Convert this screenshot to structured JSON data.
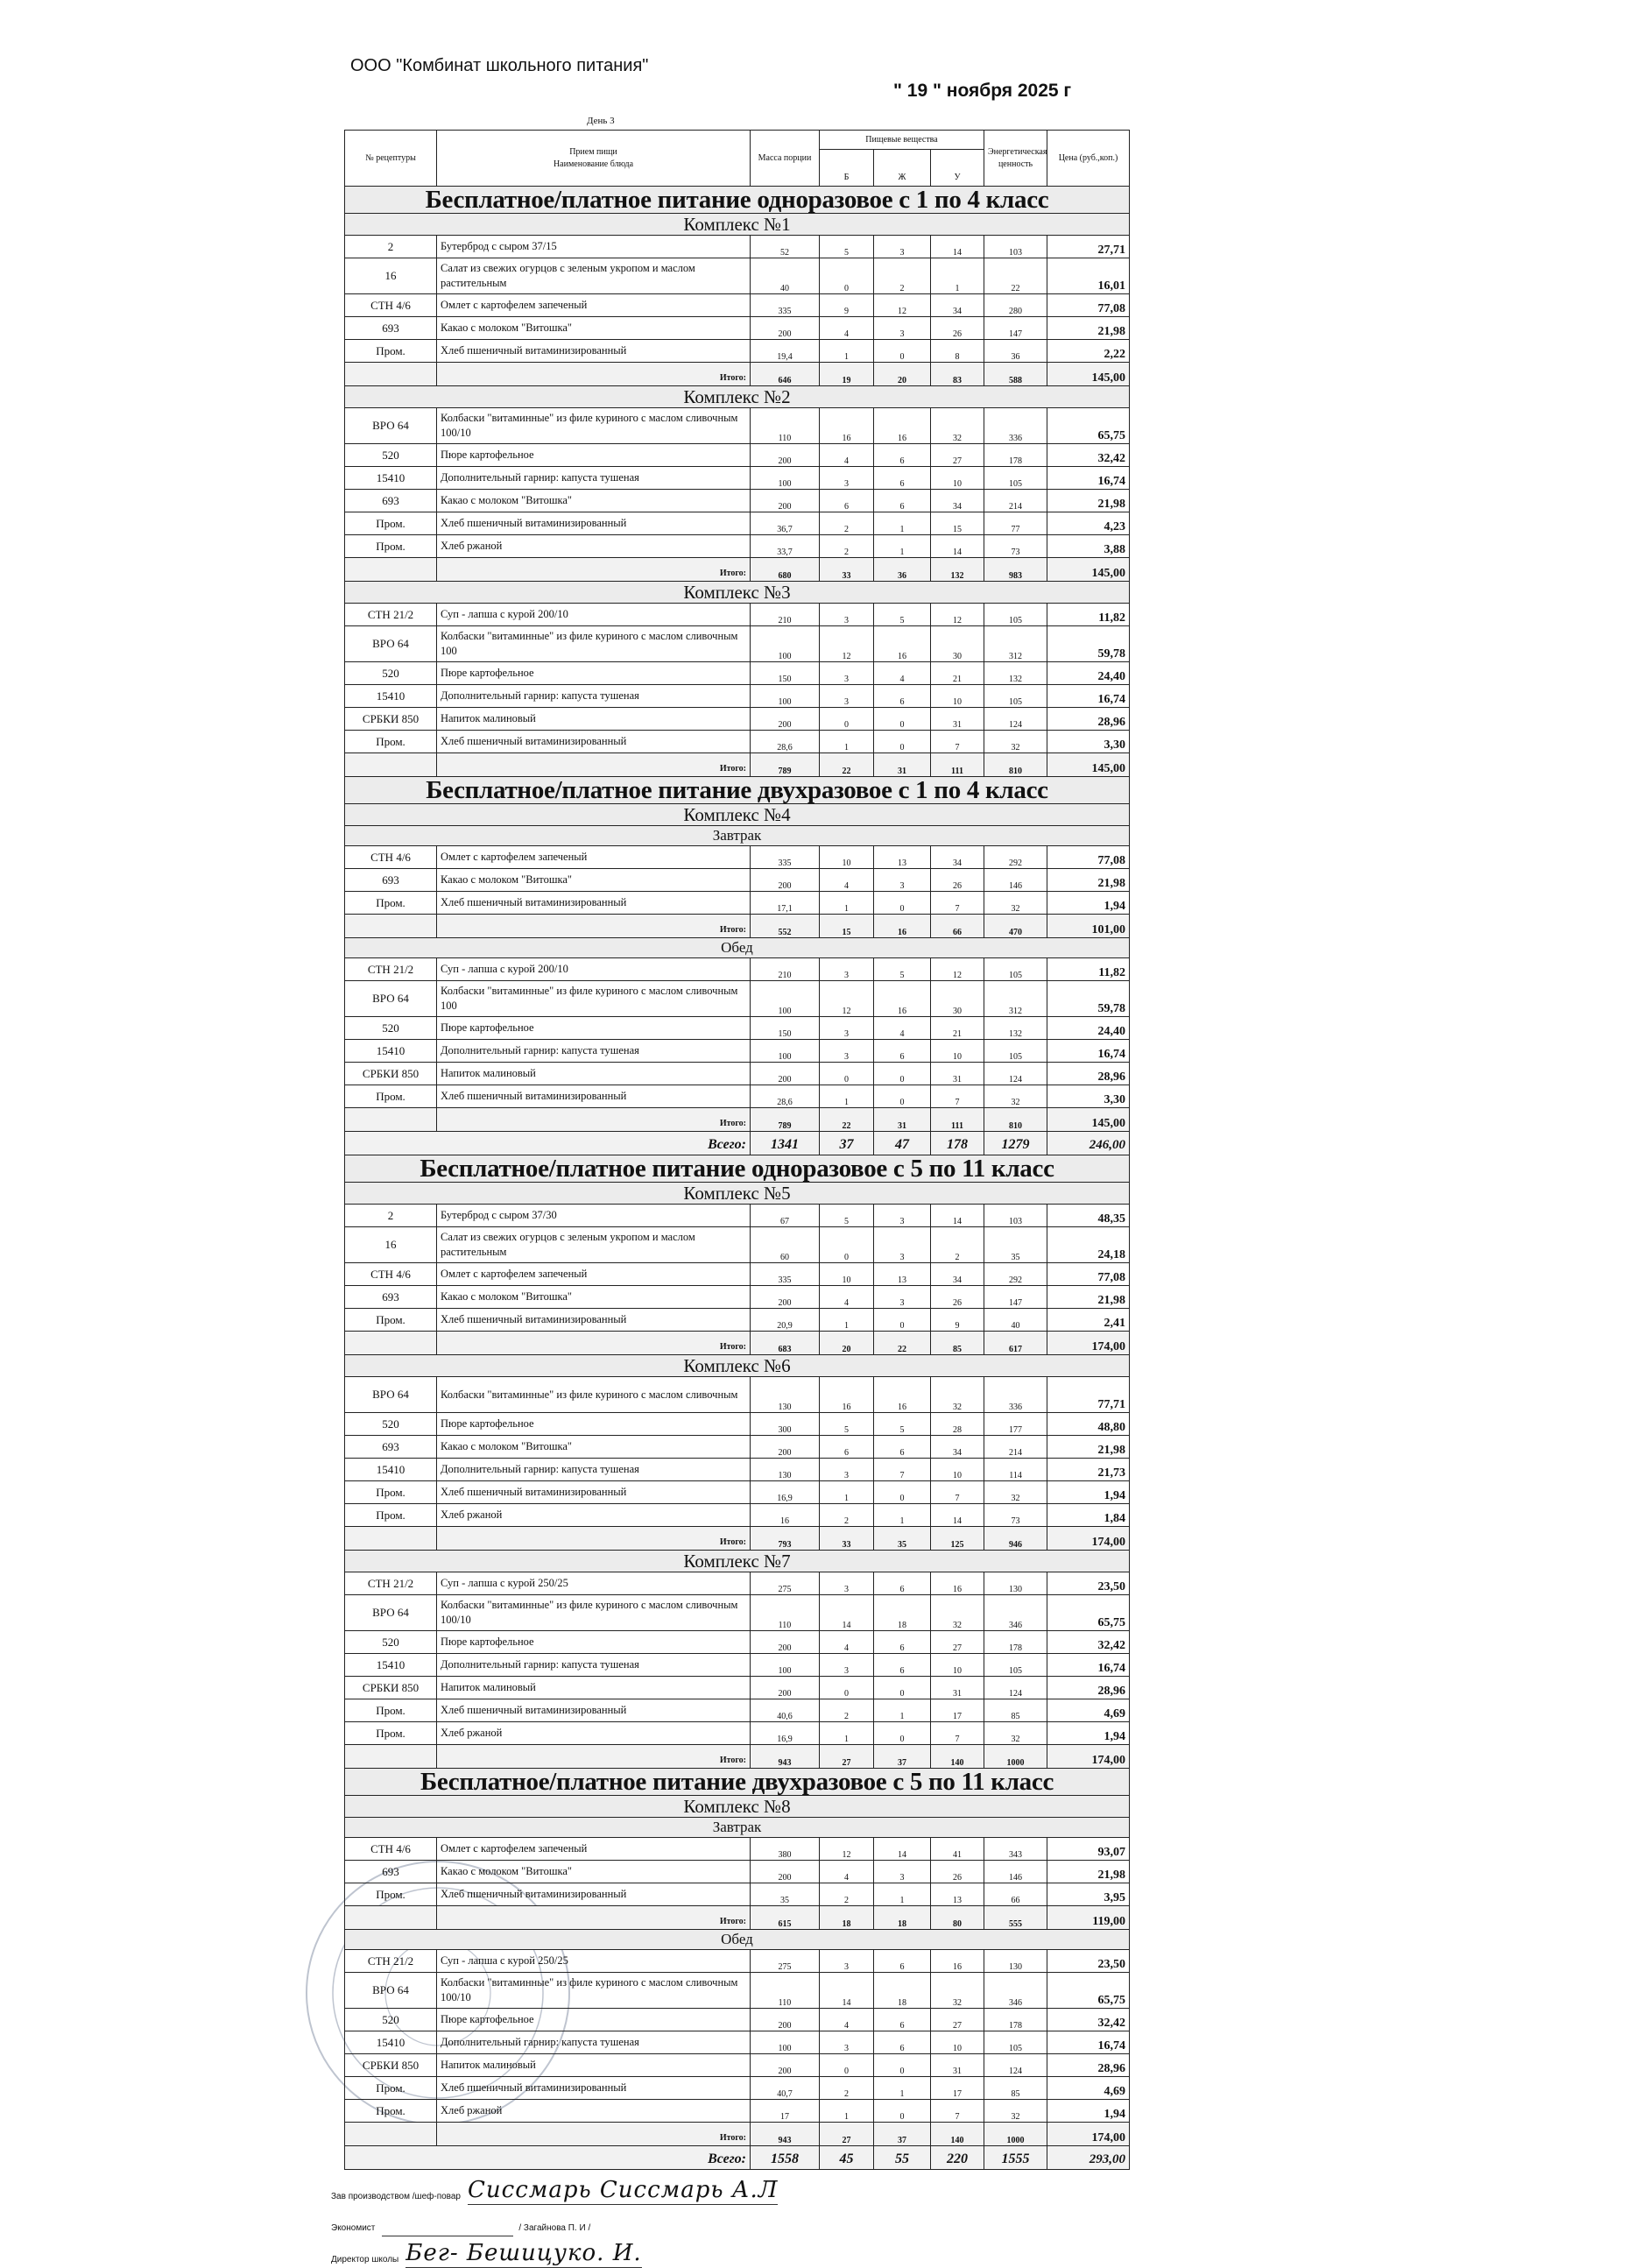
{
  "header": {
    "company": "ООО \"Комбинат школьного питания\"",
    "date": "\" 19 \" ноября  2025 г",
    "day": "День 3"
  },
  "columns": {
    "recipe": "№ рецептуры",
    "meal": "Прием пищи",
    "dish": "Наименование блюда",
    "mass": "Масса порции",
    "nutrients": "Пищевые вещества",
    "b": "Б",
    "zh": "Ж",
    "u": "У",
    "energy": "Энергетическая ценность",
    "price": "Цена (руб.,коп.)"
  },
  "labels": {
    "total": "Итого:",
    "grand_total": "Всего:"
  },
  "sections": [
    {
      "title": "Бесплатное/платное питание одноразовое  с 1 по 4 класс",
      "complexes": [
        {
          "name": "Комплекс №1",
          "groups": [
            {
              "rows": [
                [
                  "2",
                  "Бутерброд с сыром 37/15",
                  "52",
                  "5",
                  "3",
                  "14",
                  "103",
                  "27,71"
                ],
                [
                  "16",
                  "Салат из свежих огурцов с зеленым укропом и маслом растительным",
                  "40",
                  "0",
                  "2",
                  "1",
                  "22",
                  "16,01"
                ],
                [
                  "СТН 4/6",
                  "Омлет с картофелем запеченый",
                  "335",
                  "9",
                  "12",
                  "34",
                  "280",
                  "77,08"
                ],
                [
                  "693",
                  "Какао с молоком \"Витошка\"",
                  "200",
                  "4",
                  "3",
                  "26",
                  "147",
                  "21,98"
                ],
                [
                  "Пром.",
                  "Хлеб пшеничный витаминизированный",
                  "19,4",
                  "1",
                  "0",
                  "8",
                  "36",
                  "2,22"
                ]
              ],
              "total": [
                "646",
                "19",
                "20",
                "83",
                "588",
                "145,00"
              ]
            }
          ]
        },
        {
          "name": "Комплекс №2",
          "groups": [
            {
              "rows": [
                [
                  "ВРО 64",
                  "Колбаски \"витаминные\" из филе куриного с маслом сливочным 100/10",
                  "110",
                  "16",
                  "16",
                  "32",
                  "336",
                  "65,75"
                ],
                [
                  "520",
                  "Пюре картофельное",
                  "200",
                  "4",
                  "6",
                  "27",
                  "178",
                  "32,42"
                ],
                [
                  "15410",
                  "Дополнительный гарнир: капуста тушеная",
                  "100",
                  "3",
                  "6",
                  "10",
                  "105",
                  "16,74"
                ],
                [
                  "693",
                  "Какао с молоком \"Витошка\"",
                  "200",
                  "6",
                  "6",
                  "34",
                  "214",
                  "21,98"
                ],
                [
                  "Пром.",
                  "Хлеб пшеничный витаминизированный",
                  "36,7",
                  "2",
                  "1",
                  "15",
                  "77",
                  "4,23"
                ],
                [
                  "Пром.",
                  "Хлеб ржаной",
                  "33,7",
                  "2",
                  "1",
                  "14",
                  "73",
                  "3,88"
                ]
              ],
              "total": [
                "680",
                "33",
                "36",
                "132",
                "983",
                "145,00"
              ]
            }
          ]
        },
        {
          "name": "Комплекс №3",
          "groups": [
            {
              "rows": [
                [
                  "СТН 21/2",
                  "Суп - лапша с курой 200/10",
                  "210",
                  "3",
                  "5",
                  "12",
                  "105",
                  "11,82"
                ],
                [
                  "ВРО 64",
                  "Колбаски \"витаминные\" из филе куриного с маслом сливочным 100",
                  "100",
                  "12",
                  "16",
                  "30",
                  "312",
                  "59,78"
                ],
                [
                  "520",
                  "Пюре картофельное",
                  "150",
                  "3",
                  "4",
                  "21",
                  "132",
                  "24,40"
                ],
                [
                  "15410",
                  "Дополнительный гарнир: капуста тушеная",
                  "100",
                  "3",
                  "6",
                  "10",
                  "105",
                  "16,74"
                ],
                [
                  "СРБКИ 850",
                  "Напиток малиновый",
                  "200",
                  "0",
                  "0",
                  "31",
                  "124",
                  "28,96"
                ],
                [
                  "Пром.",
                  "Хлеб пшеничный витаминизированный",
                  "28,6",
                  "1",
                  "0",
                  "7",
                  "32",
                  "3,30"
                ]
              ],
              "total": [
                "789",
                "22",
                "31",
                "111",
                "810",
                "145,00"
              ]
            }
          ]
        }
      ]
    },
    {
      "title": "Бесплатное/платное питание двухразовое с 1 по 4 класс",
      "complexes": [
        {
          "name": "Комплекс №4",
          "groups": [
            {
              "label": "Завтрак",
              "rows": [
                [
                  "СТН 4/6",
                  "Омлет с картофелем запеченый",
                  "335",
                  "10",
                  "13",
                  "34",
                  "292",
                  "77,08"
                ],
                [
                  "693",
                  "Какао с молоком \"Витошка\"",
                  "200",
                  "4",
                  "3",
                  "26",
                  "146",
                  "21,98"
                ],
                [
                  "Пром.",
                  "Хлеб пшеничный витаминизированный",
                  "17,1",
                  "1",
                  "0",
                  "7",
                  "32",
                  "1,94"
                ]
              ],
              "total": [
                "552",
                "15",
                "16",
                "66",
                "470",
                "101,00"
              ]
            },
            {
              "label": "Обед",
              "rows": [
                [
                  "СТН 21/2",
                  "Суп - лапша с курой 200/10",
                  "210",
                  "3",
                  "5",
                  "12",
                  "105",
                  "11,82"
                ],
                [
                  "ВРО 64",
                  "Колбаски \"витаминные\" из филе куриного с маслом сливочным 100",
                  "100",
                  "12",
                  "16",
                  "30",
                  "312",
                  "59,78"
                ],
                [
                  "520",
                  "Пюре картофельное",
                  "150",
                  "3",
                  "4",
                  "21",
                  "132",
                  "24,40"
                ],
                [
                  "15410",
                  "Дополнительный гарнир: капуста тушеная",
                  "100",
                  "3",
                  "6",
                  "10",
                  "105",
                  "16,74"
                ],
                [
                  "СРБКИ 850",
                  "Напиток малиновый",
                  "200",
                  "0",
                  "0",
                  "31",
                  "124",
                  "28,96"
                ],
                [
                  "Пром.",
                  "Хлеб пшеничный витаминизированный",
                  "28,6",
                  "1",
                  "0",
                  "7",
                  "32",
                  "3,30"
                ]
              ],
              "total": [
                "789",
                "22",
                "31",
                "111",
                "810",
                "145,00"
              ]
            }
          ],
          "grand_total": [
            "1341",
            "37",
            "47",
            "178",
            "1279",
            "246,00"
          ]
        }
      ]
    },
    {
      "title": "Бесплатное/платное питание одноразовое  с 5 по 11 класс",
      "complexes": [
        {
          "name": "Комплекс №5",
          "groups": [
            {
              "rows": [
                [
                  "2",
                  "Бутерброд с сыром 37/30",
                  "67",
                  "5",
                  "3",
                  "14",
                  "103",
                  "48,35"
                ],
                [
                  "16",
                  "Салат из свежих огурцов с зеленым укропом и маслом растительным",
                  "60",
                  "0",
                  "3",
                  "2",
                  "35",
                  "24,18"
                ],
                [
                  "СТН 4/6",
                  "Омлет с картофелем запеченый",
                  "335",
                  "10",
                  "13",
                  "34",
                  "292",
                  "77,08"
                ],
                [
                  "693",
                  "Какао с молоком \"Витошка\"",
                  "200",
                  "4",
                  "3",
                  "26",
                  "147",
                  "21,98"
                ],
                [
                  "Пром.",
                  "Хлеб пшеничный витаминизированный",
                  "20,9",
                  "1",
                  "0",
                  "9",
                  "40",
                  "2,41"
                ]
              ],
              "total": [
                "683",
                "20",
                "22",
                "85",
                "617",
                "174,00"
              ]
            }
          ]
        },
        {
          "name": "Комплекс №6",
          "groups": [
            {
              "rows": [
                [
                  "ВРО 64",
                  "Колбаски \"витаминные\" из филе куриного с маслом сливочным",
                  "130",
                  "16",
                  "16",
                  "32",
                  "336",
                  "77,71"
                ],
                [
                  "520",
                  "Пюре картофельное",
                  "300",
                  "5",
                  "5",
                  "28",
                  "177",
                  "48,80"
                ],
                [
                  "693",
                  "Какао с молоком \"Витошка\"",
                  "200",
                  "6",
                  "6",
                  "34",
                  "214",
                  "21,98"
                ],
                [
                  "15410",
                  "Дополнительный гарнир: капуста тушеная",
                  "130",
                  "3",
                  "7",
                  "10",
                  "114",
                  "21,73"
                ],
                [
                  "Пром.",
                  "Хлеб пшеничный витаминизированный",
                  "16,9",
                  "1",
                  "0",
                  "7",
                  "32",
                  "1,94"
                ],
                [
                  "Пром.",
                  "Хлеб ржаной",
                  "16",
                  "2",
                  "1",
                  "14",
                  "73",
                  "1,84"
                ]
              ],
              "total": [
                "793",
                "33",
                "35",
                "125",
                "946",
                "174,00"
              ]
            }
          ]
        },
        {
          "name": "Комплекс №7",
          "groups": [
            {
              "rows": [
                [
                  "СТН 21/2",
                  "Суп - лапша с курой 250/25",
                  "275",
                  "3",
                  "6",
                  "16",
                  "130",
                  "23,50"
                ],
                [
                  "ВРО 64",
                  "Колбаски \"витаминные\" из филе куриного с маслом сливочным 100/10",
                  "110",
                  "14",
                  "18",
                  "32",
                  "346",
                  "65,75"
                ],
                [
                  "520",
                  "Пюре картофельное",
                  "200",
                  "4",
                  "6",
                  "27",
                  "178",
                  "32,42"
                ],
                [
                  "15410",
                  "Дополнительный гарнир: капуста тушеная",
                  "100",
                  "3",
                  "6",
                  "10",
                  "105",
                  "16,74"
                ],
                [
                  "СРБКИ 850",
                  "Напиток малиновый",
                  "200",
                  "0",
                  "0",
                  "31",
                  "124",
                  "28,96"
                ],
                [
                  "Пром.",
                  "Хлеб пшеничный витаминизированный",
                  "40,6",
                  "2",
                  "1",
                  "17",
                  "85",
                  "4,69"
                ],
                [
                  "Пром.",
                  "Хлеб ржаной",
                  "16,9",
                  "1",
                  "0",
                  "7",
                  "32",
                  "1,94"
                ]
              ],
              "total": [
                "943",
                "27",
                "37",
                "140",
                "1000",
                "174,00"
              ]
            }
          ]
        }
      ]
    },
    {
      "title": "Бесплатное/платное питание двухразовое с 5 по 11 класс",
      "complexes": [
        {
          "name": "Комплекс №8",
          "groups": [
            {
              "label": "Завтрак",
              "rows": [
                [
                  "СТН 4/6",
                  "Омлет с картофелем запеченый",
                  "380",
                  "12",
                  "14",
                  "41",
                  "343",
                  "93,07"
                ],
                [
                  "693",
                  "Какао с молоком \"Витошка\"",
                  "200",
                  "4",
                  "3",
                  "26",
                  "146",
                  "21,98"
                ],
                [
                  "Пром.",
                  "Хлеб пшеничный витаминизированный",
                  "35",
                  "2",
                  "1",
                  "13",
                  "66",
                  "3,95"
                ]
              ],
              "total": [
                "615",
                "18",
                "18",
                "80",
                "555",
                "119,00"
              ]
            },
            {
              "label": "Обед",
              "rows": [
                [
                  "СТН 21/2",
                  "Суп - лапша с курой 250/25",
                  "275",
                  "3",
                  "6",
                  "16",
                  "130",
                  "23,50"
                ],
                [
                  "ВРО 64",
                  "Колбаски \"витаминные\" из филе куриного с маслом сливочным 100/10",
                  "110",
                  "14",
                  "18",
                  "32",
                  "346",
                  "65,75"
                ],
                [
                  "520",
                  "Пюре картофельное",
                  "200",
                  "4",
                  "6",
                  "27",
                  "178",
                  "32,42"
                ],
                [
                  "15410",
                  "Дополнительный гарнир: капуста тушеная",
                  "100",
                  "3",
                  "6",
                  "10",
                  "105",
                  "16,74"
                ],
                [
                  "СРБКИ 850",
                  "Напиток малиновый",
                  "200",
                  "0",
                  "0",
                  "31",
                  "124",
                  "28,96"
                ],
                [
                  "Пром.",
                  "Хлеб пшеничный витаминизированный",
                  "40,7",
                  "2",
                  "1",
                  "17",
                  "85",
                  "4,69"
                ],
                [
                  "Пром.",
                  "Хлеб ржаной",
                  "17",
                  "1",
                  "0",
                  "7",
                  "32",
                  "1,94"
                ]
              ],
              "total": [
                "943",
                "27",
                "37",
                "140",
                "1000",
                "174,00"
              ]
            }
          ],
          "grand_total": [
            "1558",
            "45",
            "55",
            "220",
            "1555",
            "293,00"
          ]
        }
      ]
    }
  ],
  "footer": {
    "chef_label": "Зав производством /шеф-повар",
    "chef_signature": "Сиссмарь Сиссмарь А.Л",
    "economist_label": "Экономист",
    "economist_name": "/ Загайнова П. И /",
    "director_label": "Директор школы",
    "director_signature": "Бег- Бешицуко. И.",
    "stamp_text": "665600"
  },
  "colors": {
    "ink": "#111111",
    "shade": "#ececec",
    "stamp": "#8a94a8"
  }
}
